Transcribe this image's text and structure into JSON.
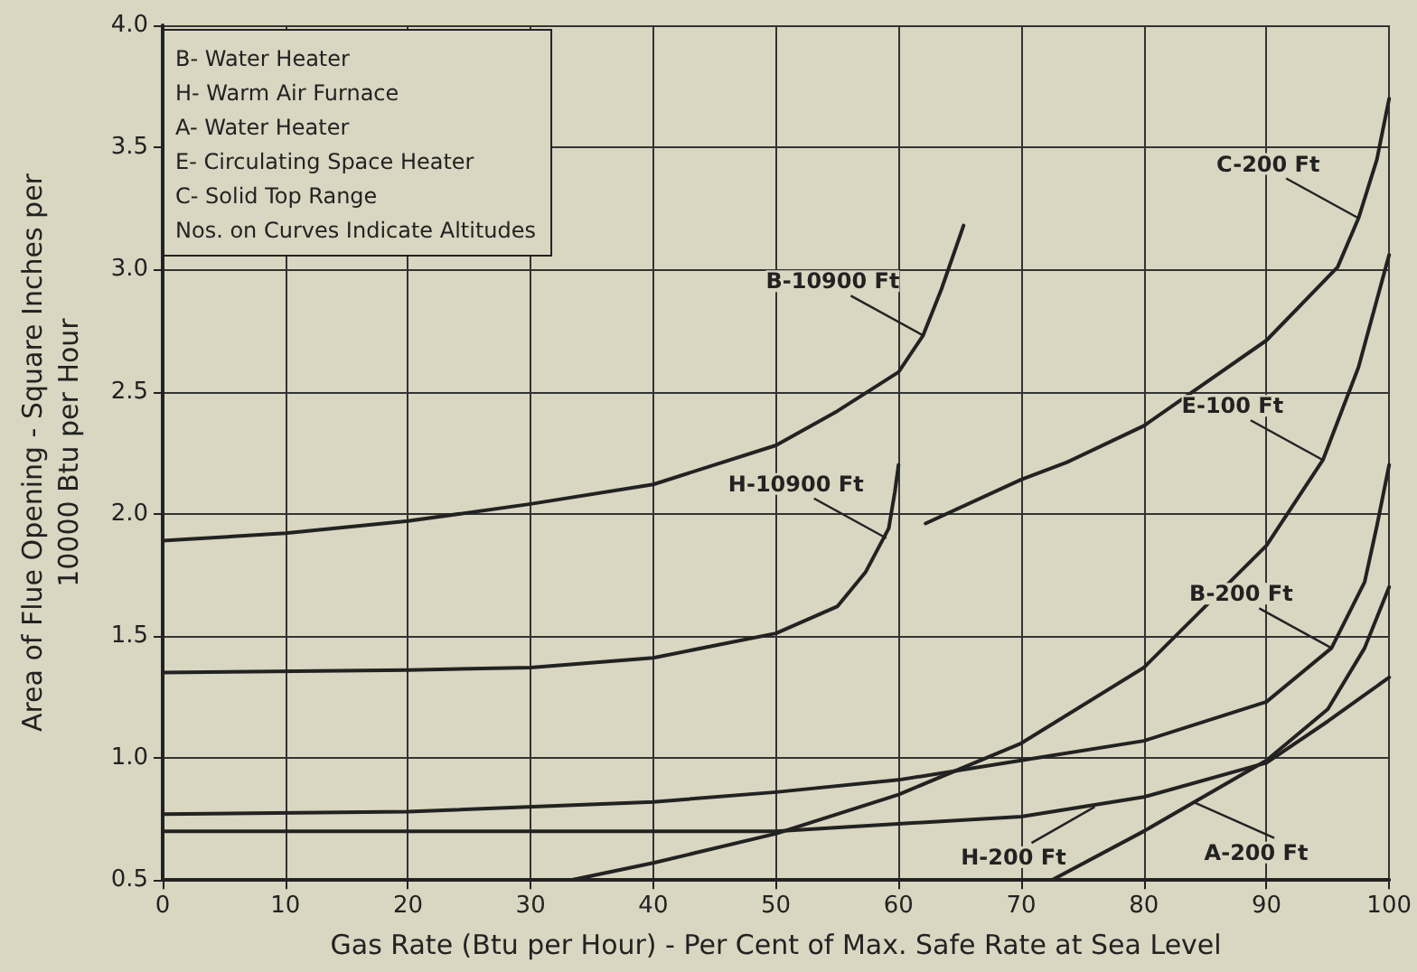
{
  "chart_data": {
    "type": "line",
    "xlabel": "Gas Rate (Btu per Hour) - Per Cent of Max. Safe Rate at Sea Level",
    "ylabel": "Area of Flue Opening - Square Inches per\n10000 Btu per Hour",
    "xlim": [
      0,
      100
    ],
    "xticks": [
      0,
      10,
      20,
      30,
      40,
      50,
      60,
      70,
      80,
      90,
      100
    ],
    "ylim": [
      0.5,
      4.0
    ],
    "yticks": [
      {
        "value": 0.5,
        "label": "0.5"
      },
      {
        "value": 1,
        "label": "1.0"
      },
      {
        "value": 1.5,
        "label": "1.5"
      },
      {
        "value": 2,
        "label": "2.0"
      },
      {
        "value": 2.5,
        "label": "2.5"
      },
      {
        "value": 3,
        "label": "3.0"
      },
      {
        "value": 3.5,
        "label": "3.5"
      },
      {
        "value": 4,
        "label": "4.0"
      }
    ],
    "grid": true,
    "marker": "none",
    "line_style": "solid",
    "series": [
      {
        "color": "#222222",
        "x": [
          0,
          10,
          20,
          30,
          40,
          50,
          55,
          60,
          62,
          63.5,
          65.3
        ],
        "values": [
          1.89,
          1.92,
          1.97,
          2.04,
          2.12,
          2.28,
          2.42,
          2.58,
          2.73,
          2.92,
          3.18
        ]
      },
      {
        "color": "#222222",
        "x": [
          0,
          20,
          30,
          40,
          50,
          55,
          57.3,
          59.2,
          59.7,
          60
        ],
        "values": [
          1.35,
          1.36,
          1.37,
          1.41,
          1.51,
          1.62,
          1.76,
          1.94,
          2.09,
          2.2
        ]
      },
      {
        "color": "#222222",
        "x": [
          62.2,
          70,
          73.7,
          80,
          90,
          95.8,
          97.5,
          99,
          100
        ],
        "values": [
          1.96,
          2.14,
          2.21,
          2.36,
          2.71,
          3.01,
          3.21,
          3.45,
          3.7
        ]
      },
      {
        "color": "#222222",
        "x": [
          33.3,
          40,
          50,
          60,
          70,
          80,
          90,
          94.6,
          97.5,
          100
        ],
        "values": [
          0.5,
          0.57,
          0.69,
          0.85,
          1.06,
          1.37,
          1.87,
          2.22,
          2.6,
          3.06
        ]
      },
      {
        "color": "#222222",
        "x": [
          0,
          20,
          40,
          50,
          60,
          70,
          80,
          90,
          95.3,
          98,
          99,
          100
        ],
        "values": [
          0.77,
          0.78,
          0.82,
          0.86,
          0.91,
          0.99,
          1.07,
          1.23,
          1.45,
          1.72,
          1.95,
          2.2
        ]
      },
      {
        "color": "#222222",
        "x": [
          0,
          50,
          70,
          80,
          90,
          95,
          100
        ],
        "values": [
          0.7,
          0.7,
          0.76,
          0.84,
          0.98,
          1.15,
          1.33
        ]
      },
      {
        "color": "#222222",
        "x": [
          72.5,
          80,
          90,
          95,
          98,
          100
        ],
        "values": [
          0.5,
          0.7,
          0.99,
          1.2,
          1.45,
          1.7
        ]
      }
    ],
    "annotations": [
      "B- Water Heater\nH- Warm Air Furnace\nA- Water Heater\nE- Circulating Space Heater\nC- Solid Top Range\nNos. on Curves Indicate Altitudes",
      {
        "text": "B-10900 Ft",
        "x": 62,
        "y": 2.73
      },
      {
        "text": "H-10900 Ft",
        "x": 59,
        "y": 1.9
      },
      {
        "text": "C-200 Ft",
        "x": 97.5,
        "y": 3.21
      },
      {
        "text": "E-100 Ft",
        "x": 94.6,
        "y": 2.22
      },
      {
        "text": "B-200 Ft",
        "x": 95.3,
        "y": 1.45
      },
      {
        "text": "H-200 Ft",
        "x": 76,
        "y": 0.8
      },
      {
        "text": "A-200 Ft",
        "x": 84,
        "y": 0.82
      }
    ]
  }
}
